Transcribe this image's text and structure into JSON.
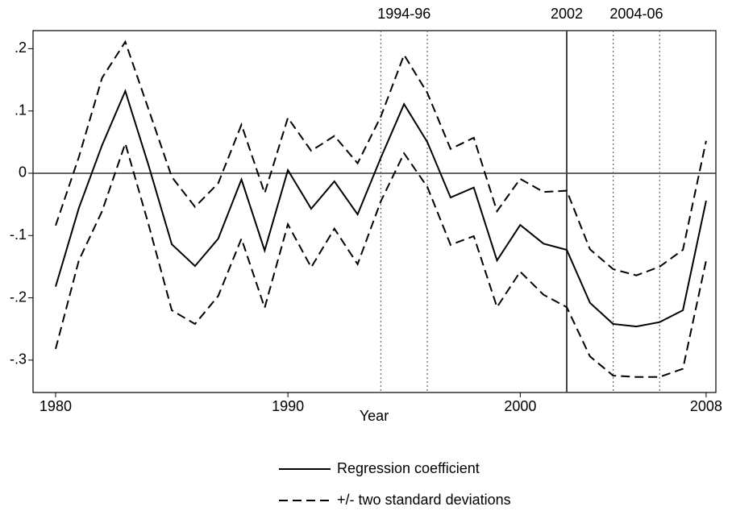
{
  "chart_data": {
    "type": "line",
    "x": [
      1980,
      1981,
      1982,
      1983,
      1984,
      1985,
      1986,
      1987,
      1988,
      1989,
      1990,
      1991,
      1992,
      1993,
      1994,
      1995,
      1996,
      1997,
      1998,
      1999,
      2000,
      2001,
      2002,
      2003,
      2004,
      2005,
      2006,
      2007,
      2008
    ],
    "x_label": "Year",
    "series": [
      {
        "name": "Regression coefficient",
        "color": "#000000",
        "dash": "solid",
        "values": [
          -0.182,
          -0.056,
          0.045,
          0.132,
          0.013,
          -0.114,
          -0.149,
          -0.105,
          -0.01,
          -0.124,
          0.005,
          -0.057,
          -0.013,
          -0.066,
          0.025,
          0.111,
          0.05,
          -0.039,
          -0.023,
          -0.14,
          -0.083,
          -0.113,
          -0.123,
          -0.208,
          -0.242,
          -0.246,
          -0.239,
          -0.22,
          -0.044
        ]
      },
      {
        "name": "+/- two standard deviations",
        "color": "#000000",
        "dash": "dashed",
        "values": [
          -0.084,
          0.026,
          0.153,
          0.211,
          0.103,
          -0.006,
          -0.054,
          -0.016,
          0.078,
          -0.032,
          0.089,
          0.036,
          0.06,
          0.016,
          0.091,
          0.19,
          0.129,
          0.039,
          0.057,
          -0.061,
          -0.009,
          -0.03,
          -0.028,
          -0.122,
          -0.154,
          -0.164,
          -0.15,
          -0.123,
          0.052
        ]
      },
      {
        "color": "#000000",
        "dash": "dashed",
        "values": [
          -0.282,
          -0.14,
          -0.061,
          0.048,
          -0.082,
          -0.22,
          -0.242,
          -0.197,
          -0.105,
          -0.216,
          -0.082,
          -0.151,
          -0.089,
          -0.146,
          -0.045,
          0.032,
          -0.022,
          -0.115,
          -0.101,
          -0.215,
          -0.158,
          -0.195,
          -0.215,
          -0.294,
          -0.325,
          -0.327,
          -0.327,
          -0.314,
          -0.14
        ]
      }
    ],
    "xlim": [
      1979.03,
      2008.42
    ],
    "xticks": [
      1980,
      1990,
      2000,
      2008
    ],
    "ylim": [
      -0.352,
      0.229
    ],
    "yticks": [
      {
        "value": -0.3,
        "label": "-.3"
      },
      {
        "value": -0.2,
        "label": "-.2"
      },
      {
        "value": -0.1,
        "label": "-.1"
      },
      0,
      {
        "value": 0.1,
        "label": ".1"
      },
      {
        "value": 0.2,
        "label": ".2"
      }
    ],
    "hline": 0,
    "reference_lines": [
      {
        "label": "1994-96",
        "x": [
          1994,
          1996
        ],
        "style": "dotted"
      },
      {
        "label": "2002",
        "x": [
          2002
        ],
        "style": "solid"
      },
      {
        "label": "2004-06",
        "x": [
          2004,
          2006
        ],
        "style": "dotted"
      }
    ]
  }
}
